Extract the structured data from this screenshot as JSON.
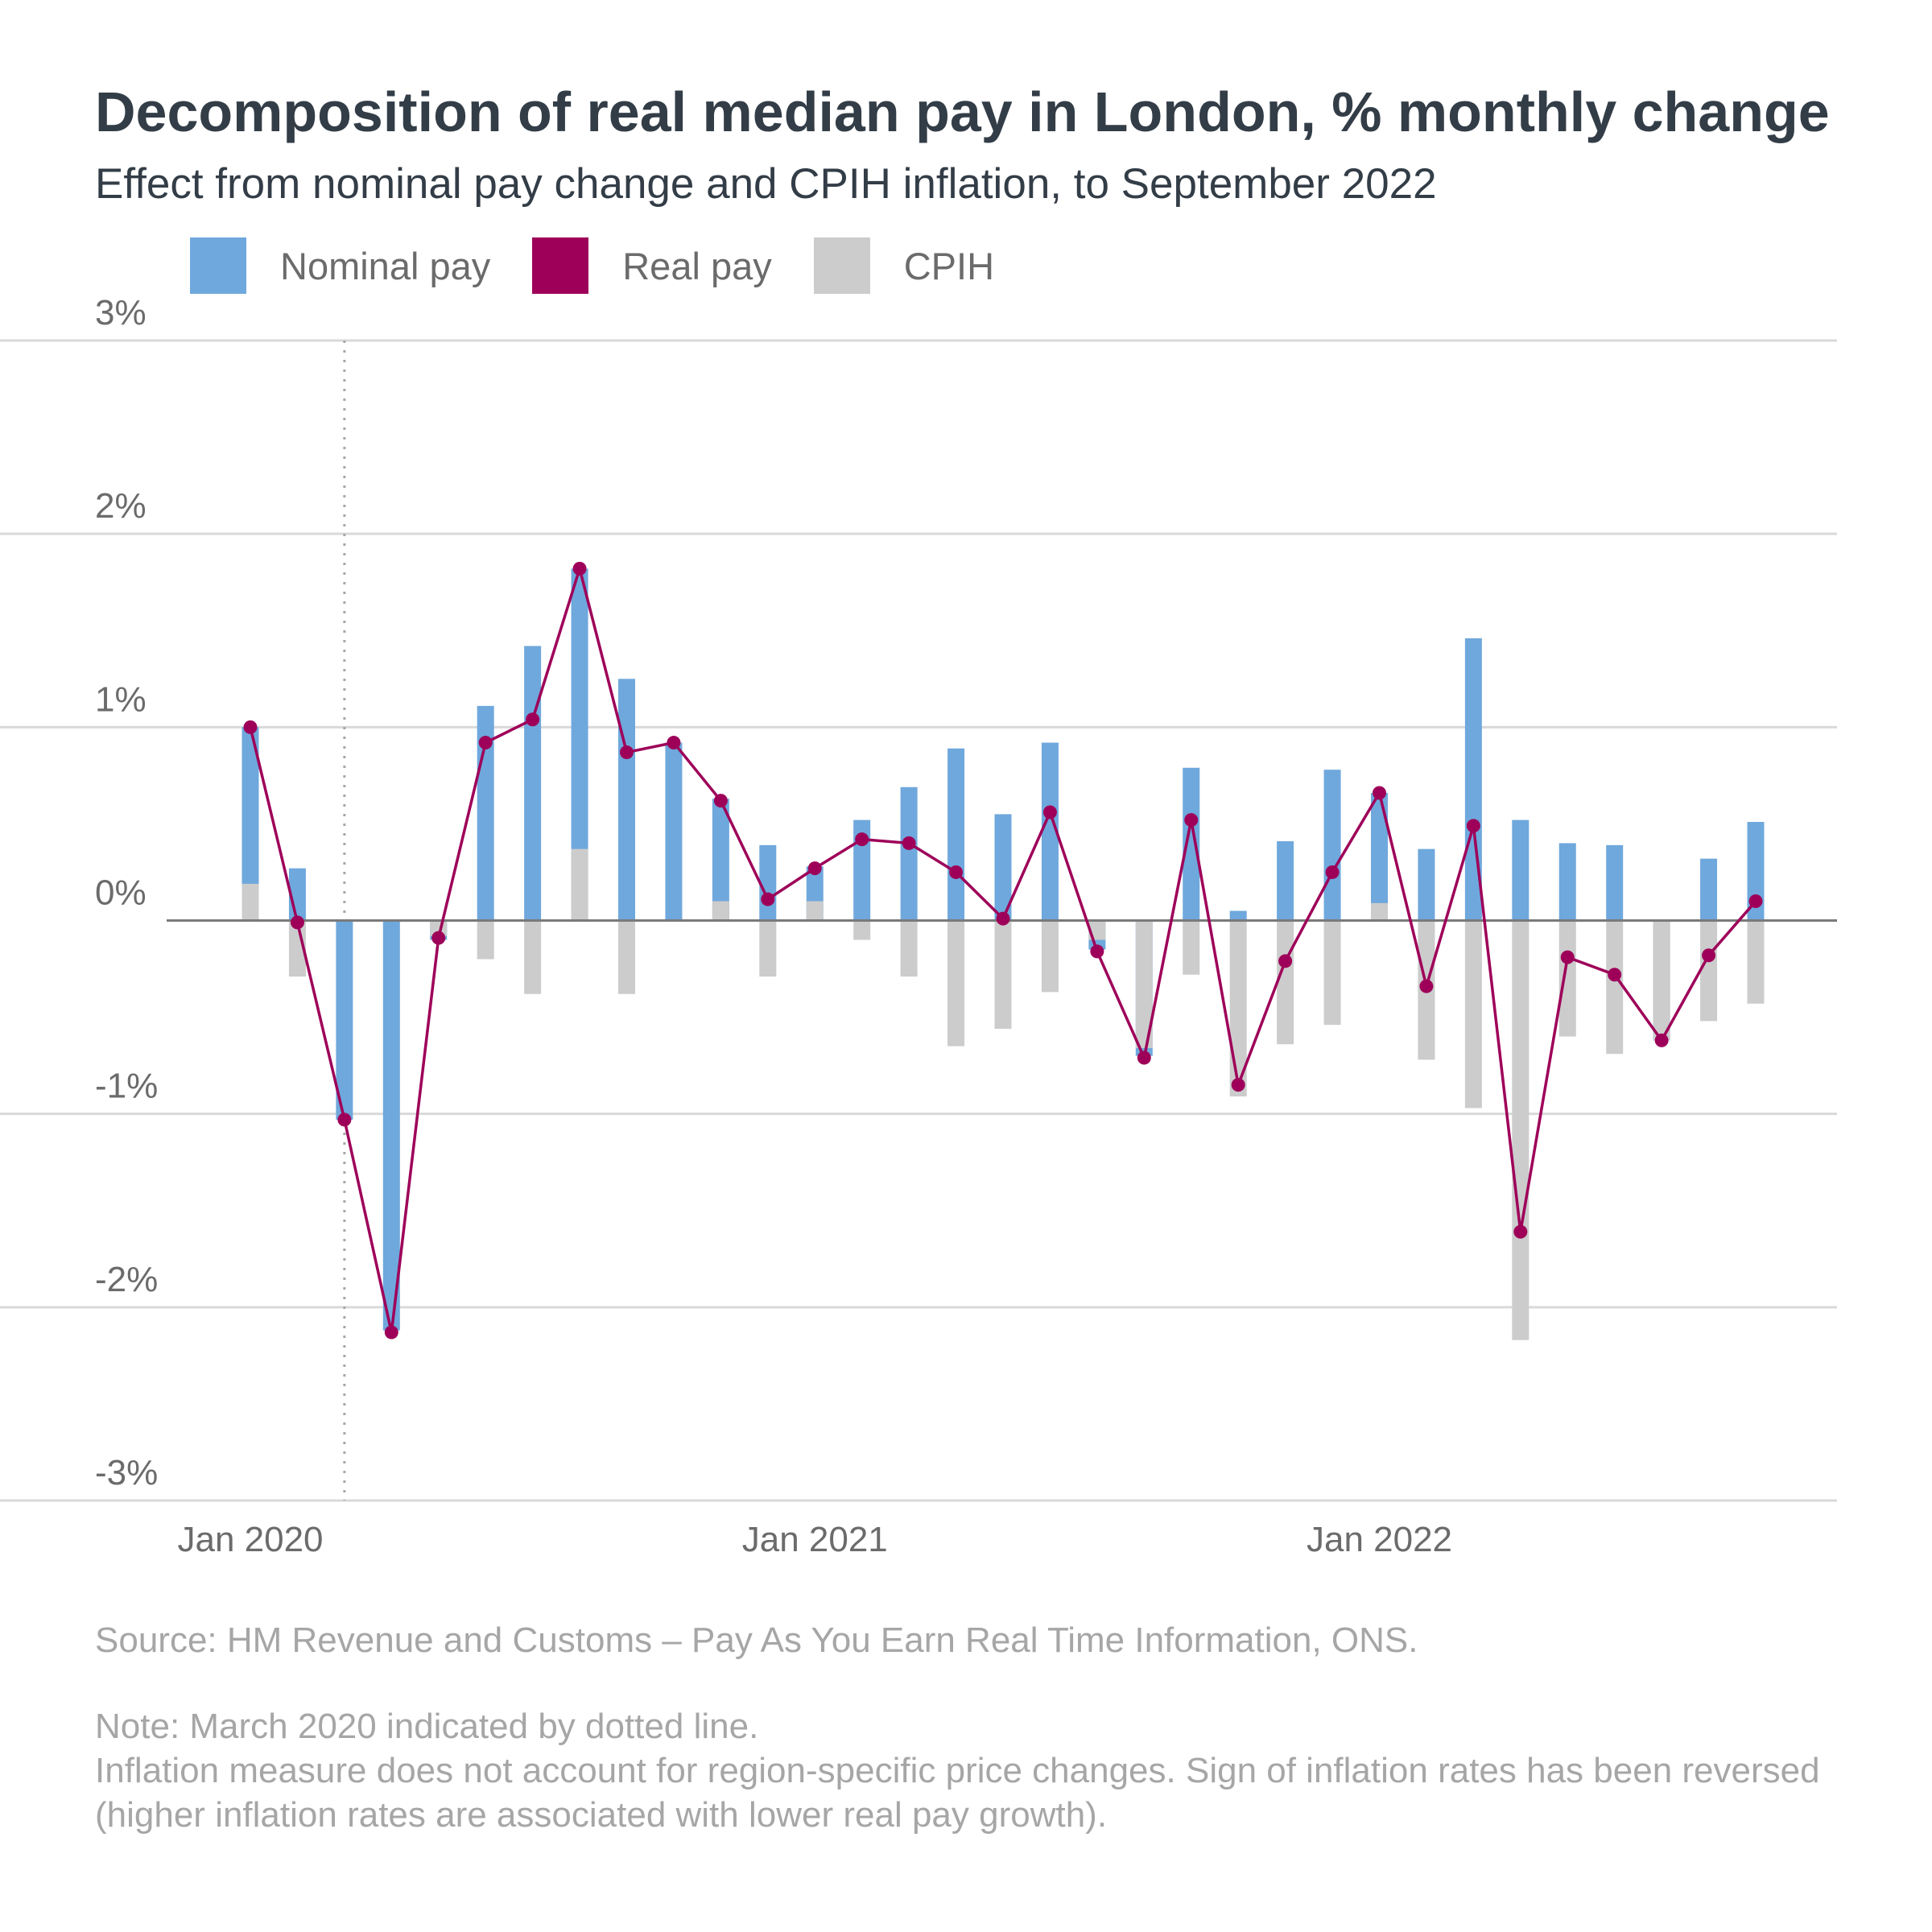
{
  "title": "Decomposition of real median pay in London, % monthly change",
  "subtitle": "Effect from nominal pay change and CPIH inflation, to September 2022",
  "legend": [
    {
      "label": "Nominal pay",
      "color": "#6fa8dc"
    },
    {
      "label": "Real pay",
      "color": "#9e0059"
    },
    {
      "label": "CPIH",
      "color": "#cccccc"
    }
  ],
  "notes": {
    "source": "Source: HM Revenue and Customs – Pay As You Earn Real Time Information, ONS.",
    "note_line1": "Note: March 2020 indicated by dotted line.",
    "note_line2": "Inflation measure does not account for region-specific price changes. Sign of inflation rates has been reversed (higher inflation rates are associated with lower real pay growth)."
  },
  "chart_data": {
    "type": "bar",
    "title": "Decomposition of real median pay in London, % monthly change",
    "subtitle": "Effect from nominal pay change and CPIH inflation, to September 2022",
    "ylim": [
      -3,
      3
    ],
    "y_ticks": [
      "3%",
      "2%",
      "1%",
      "0%",
      "-1%",
      "-2%",
      "-3%"
    ],
    "y_tick_values": [
      3,
      2,
      1,
      0,
      -1,
      -2,
      -3
    ],
    "x_tick_labels": [
      {
        "label": "Jan 2020",
        "month": "2020-01"
      },
      {
        "label": "Jan 2021",
        "month": "2021-01"
      },
      {
        "label": "Jan 2022",
        "month": "2022-01"
      }
    ],
    "reference_line": {
      "month": "2020-03",
      "style": "dotted"
    },
    "grid": true,
    "legend_position": "top-left",
    "categories": [
      "2020-01",
      "2020-02",
      "2020-03",
      "2020-04",
      "2020-05",
      "2020-06",
      "2020-07",
      "2020-08",
      "2020-09",
      "2020-10",
      "2020-11",
      "2020-12",
      "2021-01",
      "2021-02",
      "2021-03",
      "2021-04",
      "2021-05",
      "2021-06",
      "2021-07",
      "2021-08",
      "2021-09",
      "2021-10",
      "2021-11",
      "2021-12",
      "2022-01",
      "2022-02",
      "2022-03",
      "2022-04",
      "2022-05",
      "2022-06",
      "2022-07",
      "2022-08",
      "2022-09"
    ],
    "series": [
      {
        "name": "Nominal pay",
        "type": "bar",
        "color": "#6fa8dc",
        "values": [
          1.0,
          0.27,
          -1.03,
          -2.12,
          -0.1,
          1.11,
          1.42,
          1.82,
          1.25,
          0.92,
          0.63,
          0.39,
          0.28,
          0.52,
          0.69,
          0.89,
          0.55,
          0.92,
          -0.15,
          -0.7,
          0.79,
          0.05,
          0.41,
          0.78,
          0.66,
          0.37,
          1.46,
          0.52,
          0.4,
          0.39,
          -0.62,
          0.32,
          0.51
        ]
      },
      {
        "name": "CPIH",
        "type": "bar",
        "color": "#cccccc",
        "values": [
          0.19,
          -0.29,
          0.0,
          0.0,
          -0.08,
          -0.2,
          -0.38,
          0.37,
          -0.38,
          0.0,
          0.1,
          -0.29,
          0.1,
          -0.1,
          -0.29,
          -0.65,
          -0.56,
          -0.37,
          -0.1,
          -0.66,
          -0.28,
          -0.91,
          -0.64,
          -0.54,
          0.09,
          -0.72,
          -0.97,
          -2.17,
          -0.6,
          -0.69,
          -0.62,
          -0.52,
          -0.43
        ]
      },
      {
        "name": "Real pay",
        "type": "line",
        "color": "#9e0059",
        "values": [
          1.0,
          -0.01,
          -1.03,
          -2.13,
          -0.09,
          0.92,
          1.04,
          1.82,
          0.87,
          0.92,
          0.62,
          0.11,
          0.27,
          0.42,
          0.4,
          0.25,
          0.01,
          0.56,
          -0.16,
          -0.71,
          0.52,
          -0.85,
          -0.21,
          0.25,
          0.66,
          -0.34,
          0.49,
          -1.61,
          -0.19,
          -0.28,
          -0.62,
          -0.18,
          0.1
        ]
      }
    ]
  }
}
